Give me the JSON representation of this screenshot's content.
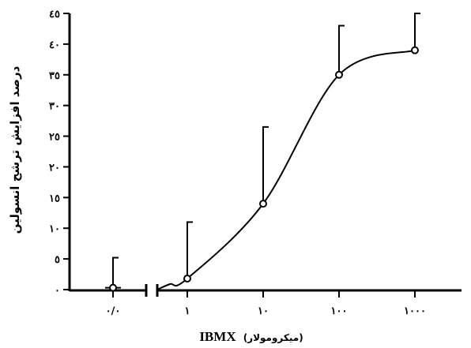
{
  "chart_data": {
    "type": "line",
    "ylabel": "درصد افزایش ترشح انسولین",
    "xlabel": {
      "main": "IBMX",
      "unit": "(میکرومولار)"
    },
    "ylim": [
      0,
      45
    ],
    "y_ticks": [
      0,
      5,
      10,
      15,
      20,
      25,
      30,
      35,
      40,
      45
    ],
    "y_tick_labels": [
      "٠",
      "٥",
      "١٠",
      "١٥",
      "٢٠",
      "٢٥",
      "٣٠",
      "٣٥",
      "٤٠",
      "٤٥"
    ],
    "x_scale": "log",
    "x_axis_break": true,
    "x_tick_labels": [
      "٠/٠",
      "١",
      "١٠",
      "١٠٠",
      "١٠٠٠"
    ],
    "points": [
      {
        "label": "٠/٠",
        "x": 0,
        "y": 0.3,
        "error_upper": 5.2
      },
      {
        "label": "١",
        "x": 1,
        "y": 1.8,
        "error_upper": 11.0
      },
      {
        "label": "١٠",
        "x": 10,
        "y": 14.0,
        "error_upper": 26.5
      },
      {
        "label": "١٠٠",
        "x": 100,
        "y": 35.0,
        "error_upper": 43.0
      },
      {
        "label": "١٠٠٠",
        "x": 1000,
        "y": 39.0,
        "error_upper": 45.0
      }
    ],
    "grid": false,
    "legend": false
  }
}
